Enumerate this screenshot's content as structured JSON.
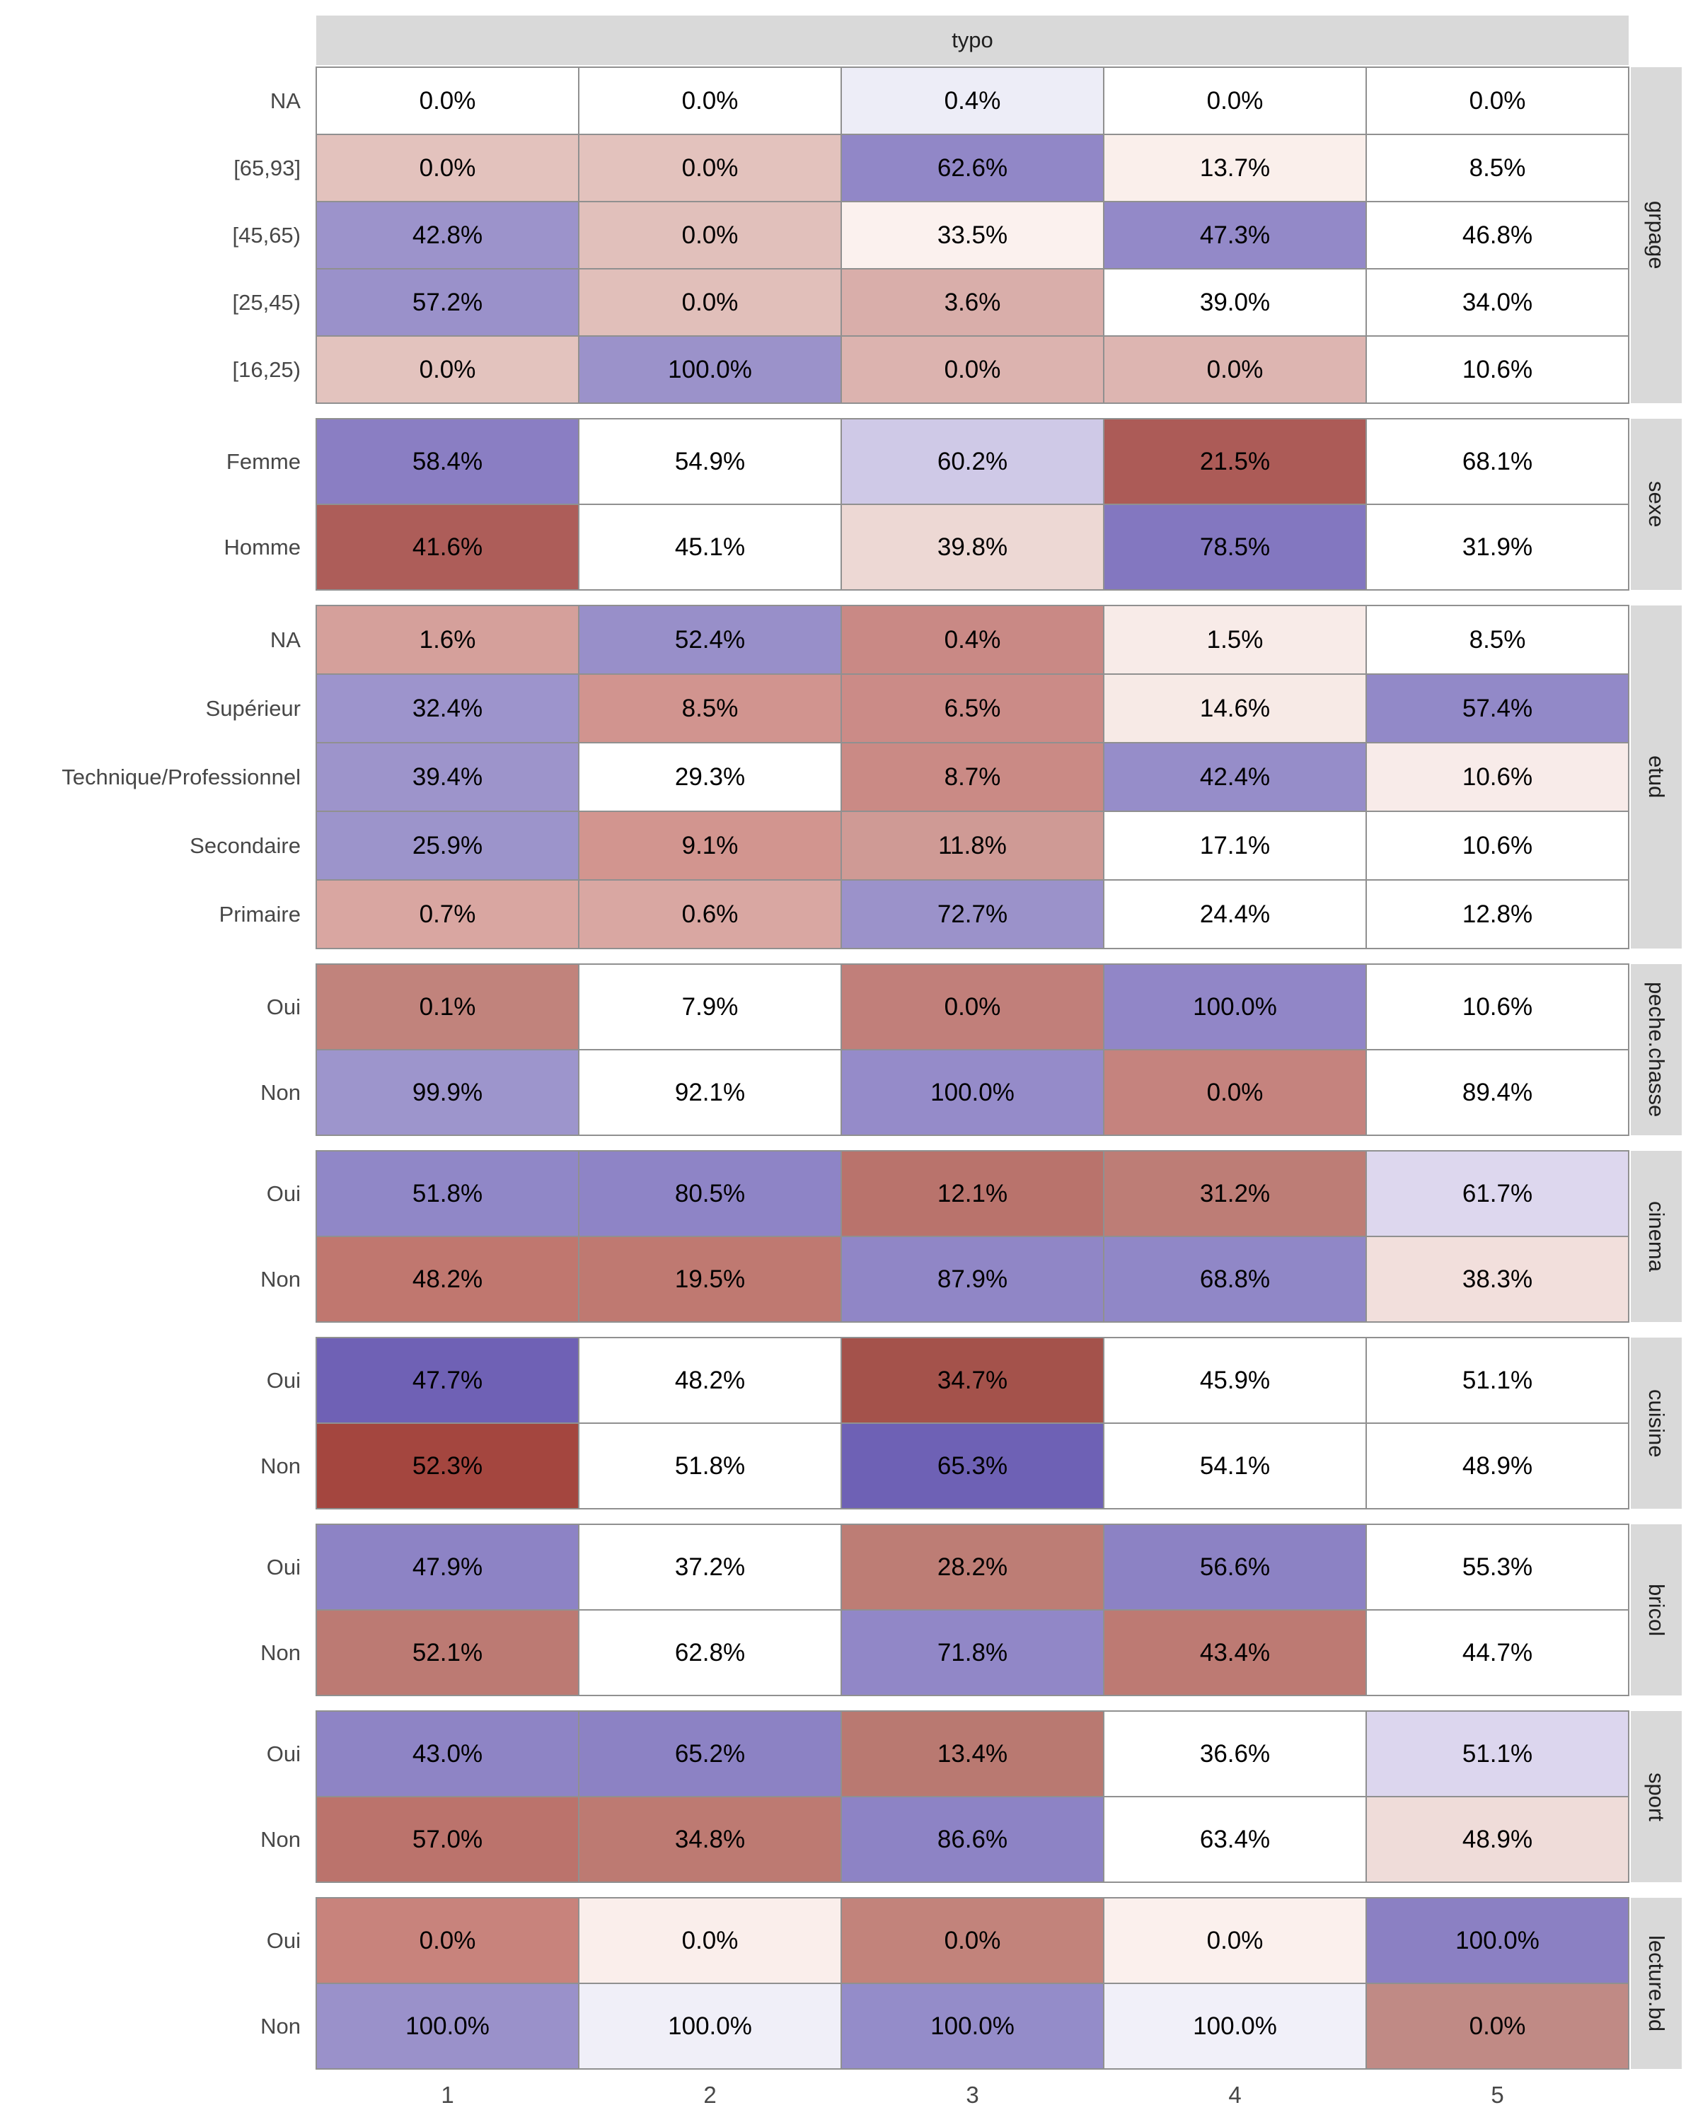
{
  "header": {
    "title": "typo"
  },
  "axis": {
    "x_ticks": [
      "1",
      "2",
      "3",
      "4",
      "5"
    ]
  },
  "colors": {
    "strip_bg": "#d9d9d9",
    "strip_text": "#1f1f1f",
    "grid_border": "#909090",
    "row_label_text": "#474747",
    "axis_text": "#474747",
    "cell_text": "#000000",
    "positive_assoc": "#6f61b5",
    "negative_assoc": "#a4463f",
    "neutral": "#ffffff"
  },
  "chart_data": {
    "type": "heatmap",
    "title": "typo",
    "x_categories": [
      "1",
      "2",
      "3",
      "4",
      "5"
    ],
    "value_unit": "percent of column within facet",
    "legend_position": "none",
    "cell_fill_meaning": "diverging palette: red = under-represented, purple = over-represented, white = neutral",
    "facets": [
      {
        "variable": "grpage",
        "rows": [
          "NA",
          "[65,93]",
          "[45,65]",
          "[25,45]",
          "[16,25]"
        ],
        "values_pct": [
          [
            0.0,
            0.0,
            0.4,
            0.0,
            0.0
          ],
          [
            0.0,
            0.0,
            62.6,
            13.7,
            8.5
          ],
          [
            42.8,
            0.0,
            33.5,
            47.3,
            46.8
          ],
          [
            57.2,
            0.0,
            3.6,
            39.0,
            34.0
          ],
          [
            0.0,
            100.0,
            0.0,
            0.0,
            10.6
          ]
        ]
      },
      {
        "variable": "sexe",
        "rows": [
          "Femme",
          "Homme"
        ],
        "values_pct": [
          [
            58.4,
            54.9,
            60.2,
            21.5,
            68.1
          ],
          [
            41.6,
            45.1,
            39.8,
            78.5,
            31.9
          ]
        ]
      },
      {
        "variable": "etud",
        "rows": [
          "NA",
          "Supérieur",
          "Technique/Professionnel",
          "Secondaire",
          "Primaire"
        ],
        "values_pct": [
          [
            1.6,
            52.4,
            0.4,
            1.5,
            8.5
          ],
          [
            32.4,
            8.5,
            6.5,
            14.6,
            57.4
          ],
          [
            39.4,
            29.3,
            8.7,
            42.4,
            10.6
          ],
          [
            25.9,
            9.1,
            11.8,
            17.1,
            10.6
          ],
          [
            0.7,
            0.6,
            72.7,
            24.4,
            12.8
          ]
        ]
      },
      {
        "variable": "peche.chasse",
        "rows": [
          "Oui",
          "Non"
        ],
        "values_pct": [
          [
            0.1,
            7.9,
            0.0,
            100.0,
            10.6
          ],
          [
            99.9,
            92.1,
            100.0,
            0.0,
            89.4
          ]
        ]
      },
      {
        "variable": "cinema",
        "rows": [
          "Oui",
          "Non"
        ],
        "values_pct": [
          [
            51.8,
            80.5,
            12.1,
            31.2,
            61.7
          ],
          [
            48.2,
            19.5,
            87.9,
            68.8,
            38.3
          ]
        ]
      },
      {
        "variable": "cuisine",
        "rows": [
          "Oui",
          "Non"
        ],
        "values_pct": [
          [
            47.7,
            48.2,
            34.7,
            45.9,
            51.1
          ],
          [
            52.3,
            51.8,
            65.3,
            54.1,
            48.9
          ]
        ]
      },
      {
        "variable": "bricol",
        "rows": [
          "Oui",
          "Non"
        ],
        "values_pct": [
          [
            47.9,
            37.2,
            28.2,
            56.6,
            55.3
          ],
          [
            52.1,
            62.8,
            71.8,
            43.4,
            44.7
          ]
        ]
      },
      {
        "variable": "sport",
        "rows": [
          "Oui",
          "Non"
        ],
        "values_pct": [
          [
            43.0,
            65.2,
            13.4,
            36.6,
            51.1
          ],
          [
            57.0,
            34.8,
            86.6,
            63.4,
            48.9
          ]
        ]
      },
      {
        "variable": "lecture.bd",
        "rows": [
          "Oui",
          "Non"
        ],
        "values_pct": [
          [
            0.0,
            0.0,
            0.0,
            0.0,
            100.0
          ],
          [
            100.0,
            100.0,
            100.0,
            100.0,
            0.0
          ]
        ]
      }
    ]
  },
  "display": {
    "facets": [
      {
        "label": "grpage",
        "rows": [
          {
            "label": "NA",
            "text": [
              "0.0%",
              "0.0%",
              "0.4%",
              "0.0%",
              "0.0%"
            ],
            "fill": [
              "#ffffff",
              "#ffffff",
              "#ededf7",
              "#ffffff",
              "#ffffff"
            ]
          },
          {
            "label": "[65,93]",
            "text": [
              "0.0%",
              "0.0%",
              "62.6%",
              "13.7%",
              "8.5%"
            ],
            "fill": [
              "#e3c2bd",
              "#e3c2bd",
              "#9187c7",
              "#faefeb",
              "#ffffff"
            ]
          },
          {
            "label": "[45,65)",
            "text": [
              "42.8%",
              "0.0%",
              "33.5%",
              "47.3%",
              "46.8%"
            ],
            "fill": [
              "#9c93cb",
              "#e1c0bb",
              "#fbf1ee",
              "#9389c8",
              "#ffffff"
            ]
          },
          {
            "label": "[25,45)",
            "text": [
              "57.2%",
              "0.0%",
              "3.6%",
              "39.0%",
              "34.0%"
            ],
            "fill": [
              "#9a91ca",
              "#e1bfba",
              "#d9aeaa",
              "#ffffff",
              "#ffffff"
            ]
          },
          {
            "label": "[16,25)",
            "text": [
              "0.0%",
              "100.0%",
              "0.0%",
              "0.0%",
              "10.6%"
            ],
            "fill": [
              "#e3c3be",
              "#9b92ca",
              "#dcb3af",
              "#ddb5b1",
              "#ffffff"
            ]
          }
        ]
      },
      {
        "label": "sexe",
        "rows": [
          {
            "label": "Femme",
            "text": [
              "58.4%",
              "54.9%",
              "60.2%",
              "21.5%",
              "68.1%"
            ],
            "fill": [
              "#8a7ec3",
              "#ffffff",
              "#cfc9e7",
              "#ac5b57",
              "#ffffff"
            ]
          },
          {
            "label": "Homme",
            "text": [
              "41.6%",
              "45.1%",
              "39.8%",
              "78.5%",
              "31.9%"
            ],
            "fill": [
              "#ad5d59",
              "#ffffff",
              "#edd8d4",
              "#8377c0",
              "#ffffff"
            ]
          }
        ]
      },
      {
        "label": "etud",
        "rows": [
          {
            "label": "NA",
            "text": [
              "1.6%",
              "52.4%",
              "0.4%",
              "1.5%",
              "8.5%"
            ],
            "fill": [
              "#d5a09b",
              "#988fc9",
              "#c98985",
              "#f8ebe8",
              "#ffffff"
            ]
          },
          {
            "label": "Supérieur",
            "text": [
              "32.4%",
              "8.5%",
              "6.5%",
              "14.6%",
              "57.4%"
            ],
            "fill": [
              "#9d94cc",
              "#d1948f",
              "#cb8b87",
              "#f7eae6",
              "#9289c8"
            ]
          },
          {
            "label": "Technique/Professionnel",
            "text": [
              "39.4%",
              "29.3%",
              "8.7%",
              "42.4%",
              "10.6%"
            ],
            "fill": [
              "#9d94cb",
              "#ffffff",
              "#ca8a85",
              "#968dc9",
              "#f8ebe9"
            ]
          },
          {
            "label": "Secondaire",
            "text": [
              "25.9%",
              "9.1%",
              "11.8%",
              "17.1%",
              "10.6%"
            ],
            "fill": [
              "#9c94cb",
              "#d2958f",
              "#cf9a95",
              "#ffffff",
              "#ffffff"
            ]
          },
          {
            "label": "Primaire",
            "text": [
              "0.7%",
              "0.6%",
              "72.7%",
              "24.4%",
              "12.8%"
            ],
            "fill": [
              "#d9a6a1",
              "#d9a7a2",
              "#9b92ca",
              "#ffffff",
              "#ffffff"
            ]
          }
        ]
      },
      {
        "label": "peche.chasse",
        "rows": [
          {
            "label": "Oui",
            "text": [
              "0.1%",
              "7.9%",
              "0.0%",
              "100.0%",
              "10.6%"
            ],
            "fill": [
              "#c1837c",
              "#ffffff",
              "#c17f7a",
              "#9186c7",
              "#ffffff"
            ]
          },
          {
            "label": "Non",
            "text": [
              "99.9%",
              "92.1%",
              "100.0%",
              "0.0%",
              "89.4%"
            ],
            "fill": [
              "#9d95cc",
              "#ffffff",
              "#958bc9",
              "#c5837e",
              "#ffffff"
            ]
          }
        ]
      },
      {
        "label": "cinema",
        "rows": [
          {
            "label": "Oui",
            "text": [
              "51.8%",
              "80.5%",
              "12.1%",
              "31.2%",
              "61.7%"
            ],
            "fill": [
              "#9087c7",
              "#8e84c6",
              "#b9736c",
              "#bd7d76",
              "#ddd7ee"
            ]
          },
          {
            "label": "Non",
            "text": [
              "48.2%",
              "19.5%",
              "87.9%",
              "68.8%",
              "38.3%"
            ],
            "fill": [
              "#c0776f",
              "#bf7971",
              "#9086c6",
              "#9087c7",
              "#f2dfdc"
            ]
          }
        ]
      },
      {
        "label": "cuisine",
        "rows": [
          {
            "label": "Oui",
            "text": [
              "47.7%",
              "48.2%",
              "34.7%",
              "45.9%",
              "51.1%"
            ],
            "fill": [
              "#6f61b5",
              "#ffffff",
              "#a4524b",
              "#ffffff",
              "#ffffff"
            ]
          },
          {
            "label": "Non",
            "text": [
              "52.3%",
              "51.8%",
              "65.3%",
              "54.1%",
              "48.9%"
            ],
            "fill": [
              "#a4463f",
              "#ffffff",
              "#6e61b5",
              "#ffffff",
              "#ffffff"
            ]
          }
        ]
      },
      {
        "label": "bricol",
        "rows": [
          {
            "label": "Oui",
            "text": [
              "47.9%",
              "37.2%",
              "28.2%",
              "56.6%",
              "55.3%"
            ],
            "fill": [
              "#8d83c5",
              "#ffffff",
              "#bd7d75",
              "#8c82c4",
              "#ffffff"
            ]
          },
          {
            "label": "Non",
            "text": [
              "52.1%",
              "62.8%",
              "71.8%",
              "43.4%",
              "44.7%"
            ],
            "fill": [
              "#bc7a73",
              "#ffffff",
              "#9187c7",
              "#bd7a73",
              "#ffffff"
            ]
          }
        ]
      },
      {
        "label": "sport",
        "rows": [
          {
            "label": "Oui",
            "text": [
              "43.0%",
              "65.2%",
              "13.4%",
              "36.6%",
              "51.1%"
            ],
            "fill": [
              "#8e84c5",
              "#8c82c4",
              "#b97971",
              "#ffffff",
              "#dcd6ee"
            ]
          },
          {
            "label": "Non",
            "text": [
              "57.0%",
              "34.8%",
              "86.6%",
              "63.4%",
              "48.9%"
            ],
            "fill": [
              "#bb736c",
              "#bd7a72",
              "#8d83c5",
              "#ffffff",
              "#efdcd9"
            ]
          }
        ]
      },
      {
        "label": "lecture.bd",
        "rows": [
          {
            "label": "Oui",
            "text": [
              "0.0%",
              "0.0%",
              "0.0%",
              "0.0%",
              "100.0%"
            ],
            "fill": [
              "#c8837c",
              "#faeeeb",
              "#c2837b",
              "#fbf0ed",
              "#8b80c3"
            ]
          },
          {
            "label": "Non",
            "text": [
              "100.0%",
              "100.0%",
              "100.0%",
              "100.0%",
              "0.0%"
            ],
            "fill": [
              "#9a91ca",
              "#f0eff8",
              "#948cc9",
              "#f1f0f9",
              "#c08a85"
            ]
          }
        ]
      }
    ]
  }
}
